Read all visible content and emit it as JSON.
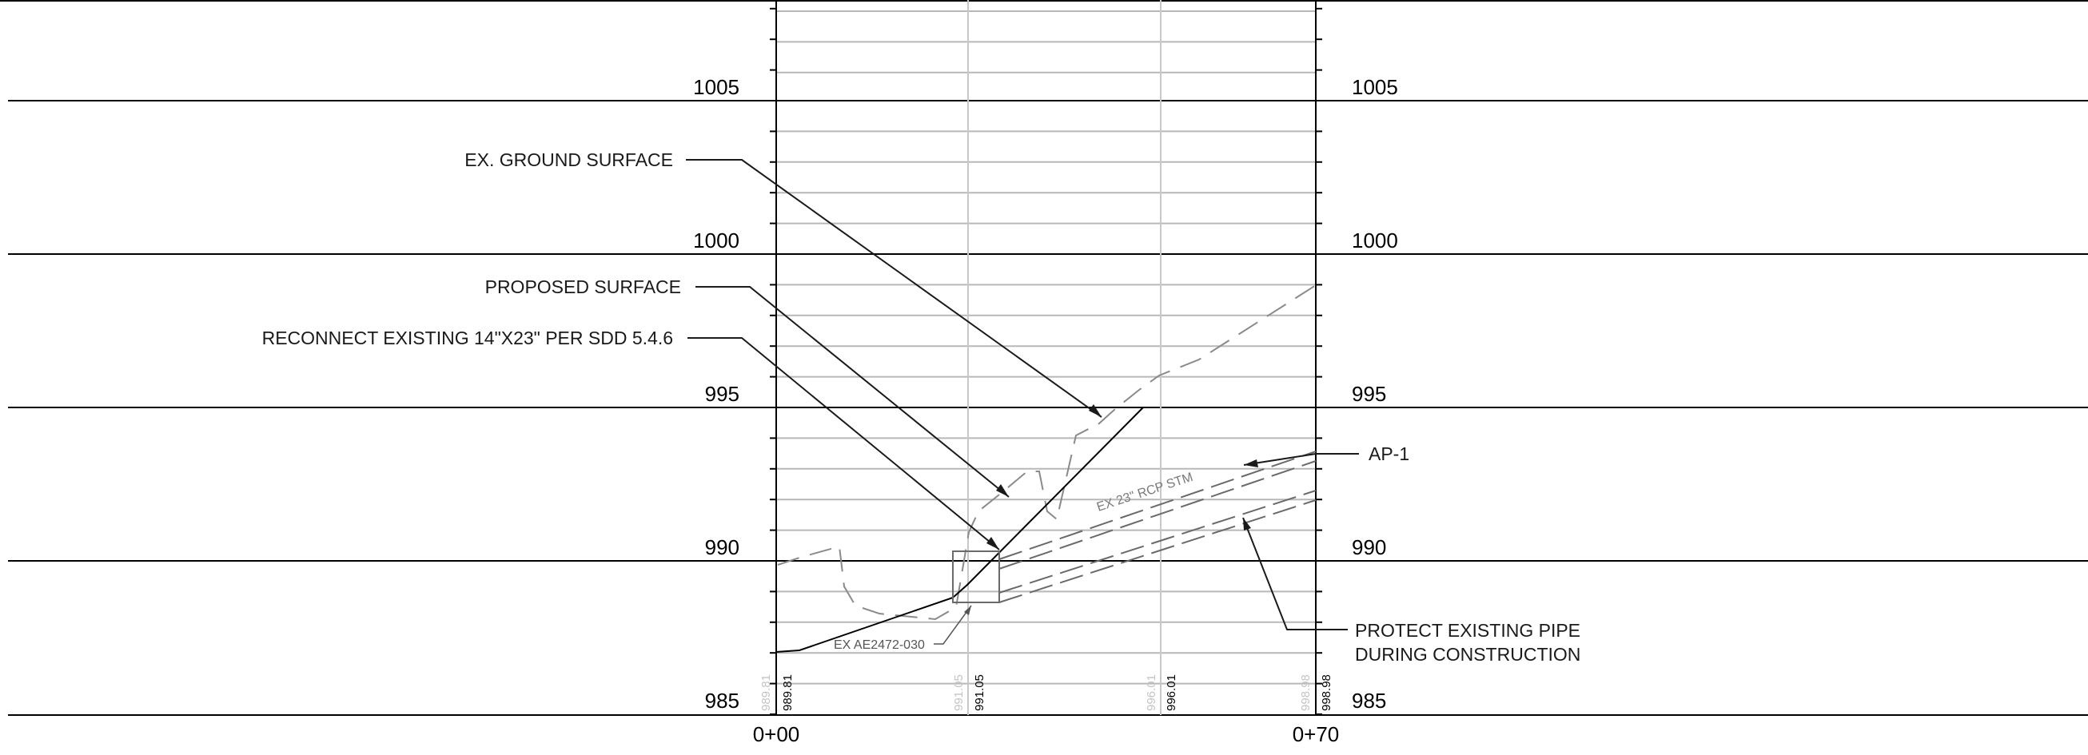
{
  "elevation_labels_left": [
    "1005",
    "1000",
    "995",
    "990",
    "985"
  ],
  "elevation_labels_right": [
    "1005",
    "1000",
    "995",
    "990",
    "985"
  ],
  "stations": [
    "0+00",
    "0+70"
  ],
  "callouts": {
    "ex_ground": "EX. GROUND SURFACE",
    "proposed": "PROPOSED SURFACE",
    "reconnect": "RECONNECT EXISTING 14\"X23\" PER SDD 5.4.6",
    "ap1": "AP-1",
    "protect_line1": "PROTECT EXISTING PIPE",
    "protect_line2": "DURING CONSTRUCTION"
  },
  "pipe_label": "EX 23\" RCP STM",
  "ex_reference": "EX AE2472-030",
  "vertical_labels": {
    "proposed": [
      "989.81",
      "991.05",
      "996.01",
      "998.98"
    ],
    "existing": [
      "989.81",
      "991.05",
      "996.01",
      "998.98"
    ]
  },
  "colors": {
    "major_line": "#000000",
    "grid_minor": "#b8b8b8",
    "ground_dash": "#8a8a8a",
    "pipe": "#6a6a6a"
  }
}
